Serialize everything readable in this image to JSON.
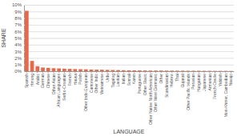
{
  "chart_data": {
    "type": "bar",
    "xlabel": "LANGUAGE",
    "ylabel": "SHARE",
    "categories": [
      "Spanish",
      "Hmong",
      "Arabic",
      "German",
      "Chinese",
      "Other Asian",
      "African Languages",
      "Serbo-Croatian",
      "French",
      "Hausa",
      "Polish",
      "Other Indo-European",
      "Cantonese",
      "Other Indic",
      "Vietnamese",
      "Urdu",
      "Tagalog",
      "Laotian",
      "Italian",
      "Somali",
      "Karen",
      "Portuguese",
      "Other Slavic",
      "Other Native North American",
      "Other West Germanic",
      "Other",
      "Scandinavian",
      "Hebrew",
      "Thai",
      "Gujarati",
      "Other Pacific Islands",
      "Peruvian",
      "Hungarian",
      "Japanese",
      "Armenian",
      "French Creole",
      "Yiddish",
      "Mon-Khmer, Cambodian",
      "Navajo"
    ],
    "values": [
      9.1,
      1.55,
      0.75,
      0.55,
      0.5,
      0.45,
      0.42,
      0.38,
      0.35,
      0.32,
      0.3,
      0.28,
      0.25,
      0.23,
      0.22,
      0.2,
      0.18,
      0.17,
      0.15,
      0.14,
      0.13,
      0.12,
      0.11,
      0.1,
      0.1,
      0.1,
      0.09,
      0.09,
      0.08,
      0.08,
      0.07,
      0.07,
      0.07,
      0.06,
      0.06,
      0.05,
      0.05,
      0.05,
      0.04
    ],
    "color": "#e8694a",
    "ylim": [
      0,
      10
    ],
    "yticks": [
      {
        "value": 0,
        "label": "0%"
      },
      {
        "value": 1,
        "label": "1%"
      },
      {
        "value": 2,
        "label": "2%"
      },
      {
        "value": 3,
        "label": "3%"
      },
      {
        "value": 4,
        "label": "4%"
      },
      {
        "value": 5,
        "label": "5%"
      },
      {
        "value": 6,
        "label": "6%"
      },
      {
        "value": 7,
        "label": "7%"
      },
      {
        "value": 8,
        "label": "8%"
      },
      {
        "value": 9,
        "label": "9%"
      },
      {
        "value": 10,
        "label": "10%"
      }
    ],
    "grid": true
  }
}
